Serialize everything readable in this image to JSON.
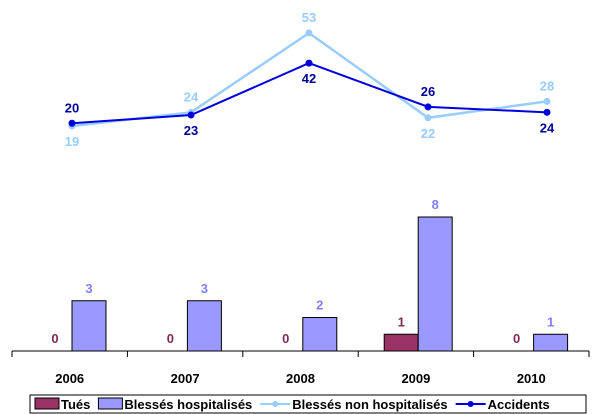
{
  "chart_data": {
    "type": "bar+line",
    "categories": [
      "2006",
      "2007",
      "2008",
      "2009",
      "2010"
    ],
    "bar_series": [
      {
        "name": "Tués",
        "values": [
          0,
          0,
          0,
          1,
          0
        ],
        "color": "#993366",
        "label_color": "#7f2a55"
      },
      {
        "name": "Blessés hospitalisés",
        "values": [
          3,
          3,
          2,
          8,
          1
        ],
        "color": "#9999ff",
        "label_color": "#8080ff"
      }
    ],
    "line_series": [
      {
        "name": "Blessés non hospitalisés",
        "values": [
          19,
          24,
          53,
          22,
          28
        ],
        "color": "#99ccff",
        "label_color": "#99ccff"
      },
      {
        "name": "Accidents",
        "values": [
          20,
          23,
          42,
          26,
          24
        ],
        "color": "#0000dd",
        "label_color": "#000099"
      }
    ],
    "legend_position": "bottom",
    "grid": false
  }
}
